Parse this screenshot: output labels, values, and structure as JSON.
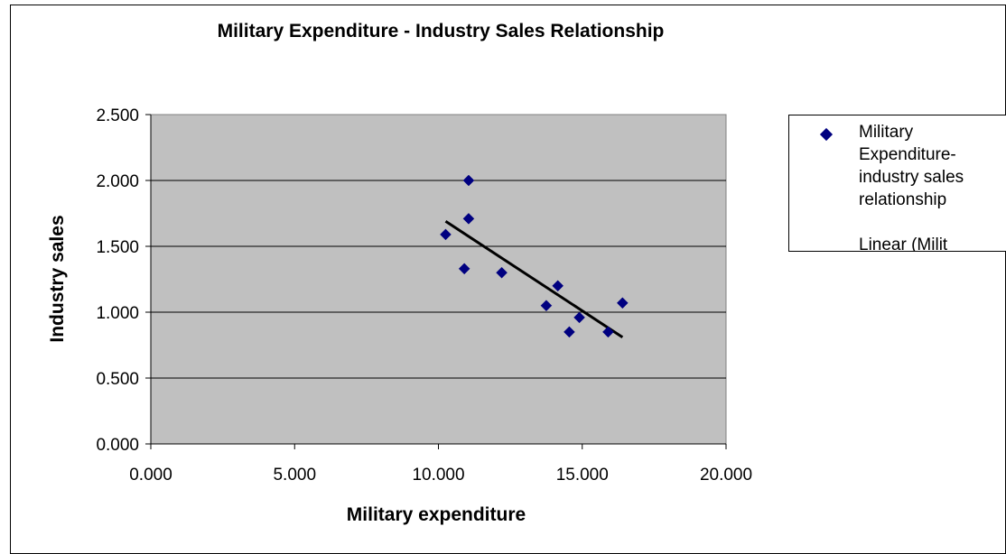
{
  "chart_data": {
    "type": "scatter",
    "title": "Military Expenditure - Industry Sales Relationship",
    "xlabel": "Military expenditure",
    "ylabel": "Industry sales",
    "xlim": [
      0,
      20
    ],
    "ylim": [
      0,
      2.5
    ],
    "x_ticks": [
      "0.000",
      "5.000",
      "10.000",
      "15.000",
      "20.000"
    ],
    "y_ticks": [
      "0.000",
      "0.500",
      "1.000",
      "1.500",
      "2.000",
      "2.500"
    ],
    "grid": "horizontal",
    "plot_background": "#c0c0c0",
    "legend_position": "right",
    "series": [
      {
        "name": "Military Expenditure-industry sales relationship",
        "color": "#000080",
        "marker": "diamond",
        "points": [
          {
            "x": 10.25,
            "y": 1.59
          },
          {
            "x": 10.9,
            "y": 1.33
          },
          {
            "x": 11.05,
            "y": 2.0
          },
          {
            "x": 11.05,
            "y": 1.71
          },
          {
            "x": 12.2,
            "y": 1.3
          },
          {
            "x": 13.75,
            "y": 1.05
          },
          {
            "x": 14.15,
            "y": 1.2
          },
          {
            "x": 14.55,
            "y": 0.85
          },
          {
            "x": 14.9,
            "y": 0.96
          },
          {
            "x": 15.9,
            "y": 0.85
          },
          {
            "x": 16.4,
            "y": 1.07
          }
        ]
      }
    ],
    "trendline": {
      "name": "Linear (Military Expenditure-industry sales relationship)",
      "visible_label": "Linear (Milit",
      "color": "#000000",
      "x": [
        10.25,
        16.4
      ],
      "y": [
        1.69,
        0.81
      ]
    }
  }
}
